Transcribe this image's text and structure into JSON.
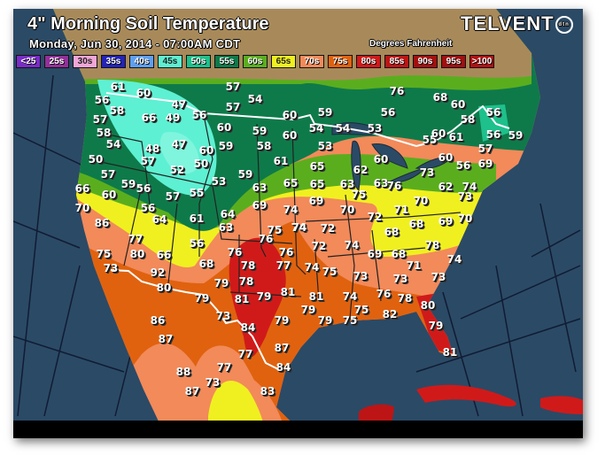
{
  "header": {
    "title": "4\" Morning Soil Temperature",
    "subtitle": "Monday, Jun 30, 2014 - 07:00AM CDT",
    "units": "Degrees Fahrenheit",
    "logo_text": "TELVENT",
    "logo_mark": "dtn"
  },
  "legend": [
    {
      "label": "<25",
      "color": "#7a2cc8"
    },
    {
      "label": "25s",
      "color": "#93309a"
    },
    {
      "label": "30s",
      "color": "#f2a6d8"
    },
    {
      "label": "35s",
      "color": "#2323b8"
    },
    {
      "label": "40s",
      "color": "#5f9ff0"
    },
    {
      "label": "45s",
      "color": "#5ef0d2"
    },
    {
      "label": "50s",
      "color": "#1ec08c"
    },
    {
      "label": "55s",
      "color": "#0e7a4a"
    },
    {
      "label": "60s",
      "color": "#5aae1e"
    },
    {
      "label": "65s",
      "color": "#f0f020"
    },
    {
      "label": "70s",
      "color": "#f28a5a"
    },
    {
      "label": "75s",
      "color": "#e0620f"
    },
    {
      "label": "80s",
      "color": "#d01a1a"
    },
    {
      "label": "85s",
      "color": "#bd1515"
    },
    {
      "label": "90s",
      "color": "#a41010"
    },
    {
      "label": "95s",
      "color": "#a01010"
    },
    {
      "label": ">100",
      "color": "#b01212"
    }
  ],
  "colors": {
    "ocean": "#2b4a66",
    "land": "#a88a5a",
    "border_international": "#ffffff",
    "border_state": "#222222"
  },
  "temperatures": [
    "61",
    "60",
    "56",
    "58",
    "57",
    "66",
    "49",
    "47",
    "56",
    "57",
    "54",
    "57",
    "60",
    "58",
    "54",
    "48",
    "47",
    "60",
    "59",
    "60",
    "59",
    "60",
    "58",
    "50",
    "57",
    "52",
    "50",
    "61",
    "57",
    "59",
    "56",
    "53",
    "59",
    "65",
    "66",
    "60",
    "57",
    "55",
    "63",
    "69",
    "74",
    "70",
    "56",
    "64",
    "86",
    "64",
    "61",
    "63",
    "75",
    "74",
    "76",
    "77",
    "56",
    "76",
    "76",
    "75",
    "80",
    "66",
    "68",
    "78",
    "77",
    "73",
    "92",
    "79",
    "78",
    "81",
    "80",
    "79",
    "81",
    "79",
    "73",
    "86",
    "84",
    "79",
    "87",
    "87",
    "77",
    "84",
    "77",
    "88",
    "73",
    "87",
    "83",
    "69",
    "70",
    "72",
    "74",
    "72",
    "72",
    "74",
    "68",
    "69",
    "68",
    "74",
    "75",
    "73",
    "76",
    "74",
    "81",
    "79",
    "79",
    "75",
    "75",
    "82",
    "73",
    "62",
    "63",
    "75",
    "63",
    "76",
    "65",
    "65",
    "53",
    "60",
    "76",
    "68",
    "60",
    "59",
    "56",
    "58",
    "56",
    "54",
    "54",
    "53",
    "55",
    "60",
    "61",
    "56",
    "59",
    "57",
    "60",
    "56",
    "69",
    "73",
    "62",
    "74",
    "73",
    "70",
    "71",
    "70",
    "69",
    "68",
    "78",
    "71",
    "74",
    "73",
    "78",
    "80",
    "79",
    "81"
  ]
}
